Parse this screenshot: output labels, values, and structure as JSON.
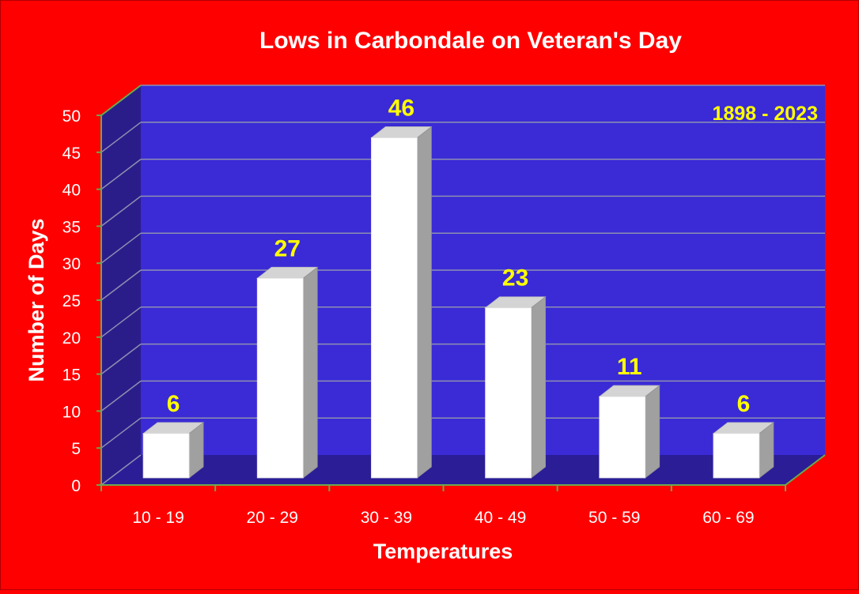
{
  "colors": {
    "background": "#ff0000",
    "plot_back": "#3a2bd6",
    "plot_side": "#2a1d8a",
    "plot_floor": "#2a1d96",
    "bar_front": "#ffffff",
    "bar_top": "#d4d4d4",
    "bar_side": "#a0a0a0",
    "label": "#ffff00",
    "text": "#ffffff"
  },
  "chart_data": {
    "type": "bar",
    "title": "Lows in Carbondale on Veteran's Day",
    "xlabel": "Temperatures",
    "ylabel": "Number of Days",
    "annotation": "1898 - 2023",
    "categories": [
      "10 - 19",
      "20 - 29",
      "30 - 39",
      "40 - 49",
      "50 - 59",
      "60 - 69"
    ],
    "values": [
      6,
      27,
      46,
      23,
      11,
      6
    ],
    "ylim": [
      0,
      50
    ],
    "yticks": [
      0,
      5,
      10,
      15,
      20,
      25,
      30,
      35,
      40,
      45,
      50
    ],
    "grid": true,
    "legend": "none",
    "style": "3d"
  }
}
